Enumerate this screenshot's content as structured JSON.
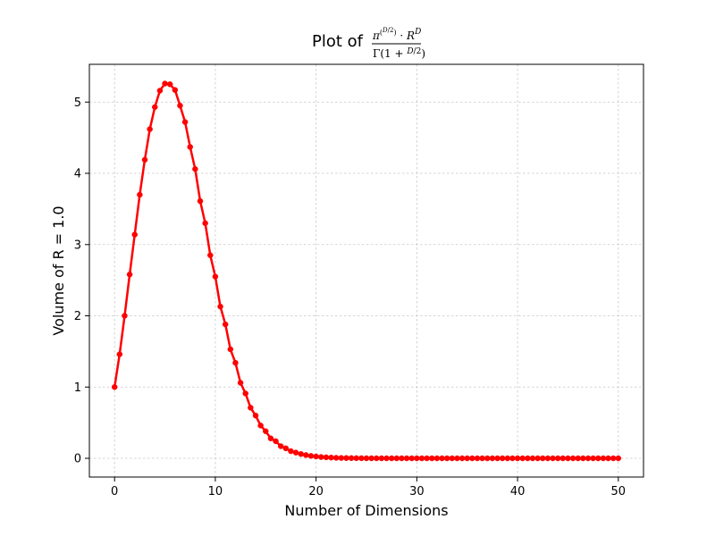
{
  "chart_data": {
    "type": "line",
    "title": {
      "prefix": "Plot of",
      "formula_numerator": "π^(D/2) · R^D",
      "formula_denominator": "Γ(1 + D/2)"
    },
    "xlabel": "Number of Dimensions",
    "ylabel": "Volume of R = 1.0",
    "xlim": [
      -2.5,
      52.5
    ],
    "ylim": [
      -0.263,
      5.53
    ],
    "xticks": [
      0,
      10,
      20,
      30,
      40,
      50
    ],
    "yticks": [
      0,
      1,
      2,
      3,
      4,
      5
    ],
    "xtick_labels": [
      "0",
      "10",
      "20",
      "30",
      "40",
      "50"
    ],
    "ytick_labels": [
      "0",
      "1",
      "2",
      "3",
      "4",
      "5"
    ],
    "grid": true,
    "series": [
      {
        "color": "#ff0000",
        "marker": "circle",
        "x": [
          0,
          0.5,
          1,
          1.5,
          2,
          2.5,
          3,
          3.5,
          4,
          4.5,
          5,
          5.5,
          6,
          6.5,
          7,
          7.5,
          8,
          8.5,
          9,
          9.5,
          10,
          10.5,
          11,
          11.5,
          12,
          12.5,
          13,
          13.5,
          14,
          14.5,
          15,
          15.5,
          16,
          16.5,
          17,
          17.5,
          18,
          18.5,
          19,
          19.5,
          20,
          20.5,
          21,
          21.5,
          22,
          22.5,
          23,
          23.5,
          24,
          24.5,
          25,
          25.5,
          26,
          26.5,
          27,
          27.5,
          28,
          28.5,
          29,
          29.5,
          30,
          30.5,
          31,
          31.5,
          32,
          32.5,
          33,
          33.5,
          34,
          34.5,
          35,
          35.5,
          36,
          36.5,
          37,
          37.5,
          38,
          38.5,
          39,
          39.5,
          40,
          40.5,
          41,
          41.5,
          42,
          42.5,
          43,
          43.5,
          44,
          44.5,
          45,
          45.5,
          46,
          46.5,
          47,
          47.5,
          48,
          48.5,
          49,
          49.5,
          50
        ],
        "y": [
          1.0,
          1.46,
          2.0,
          2.58,
          3.14,
          3.7,
          4.19,
          4.62,
          4.93,
          5.16,
          5.26,
          5.25,
          5.17,
          4.95,
          4.72,
          4.37,
          4.06,
          3.61,
          3.3,
          2.85,
          2.55,
          2.13,
          1.88,
          1.53,
          1.34,
          1.06,
          0.91,
          0.71,
          0.6,
          0.46,
          0.38,
          0.28,
          0.24,
          0.17,
          0.14,
          0.1,
          0.08,
          0.06,
          0.045,
          0.033,
          0.026,
          0.018,
          0.014,
          0.01,
          0.007,
          0.005,
          0.004,
          0.003,
          0.002,
          0.0013,
          0.0009,
          0.0006,
          0.0004,
          0.0003,
          0.0002,
          0.0001,
          0.0001,
          0.0001,
          0.0,
          0.0,
          0.0,
          0.0,
          0.0,
          0.0,
          0.0,
          0.0,
          0.0,
          0.0,
          0.0,
          0.0,
          0.0,
          0.0,
          0.0,
          0.0,
          0.0,
          0.0,
          0.0,
          0.0,
          0.0,
          0.0,
          0.0,
          0.0,
          0.0,
          0.0,
          0.0,
          0.0,
          0.0,
          0.0,
          0.0,
          0.0,
          0.0,
          0.0,
          0.0,
          0.0,
          0.0,
          0.0,
          0.0,
          0.0,
          0.0,
          0.0,
          0.0
        ]
      }
    ]
  }
}
